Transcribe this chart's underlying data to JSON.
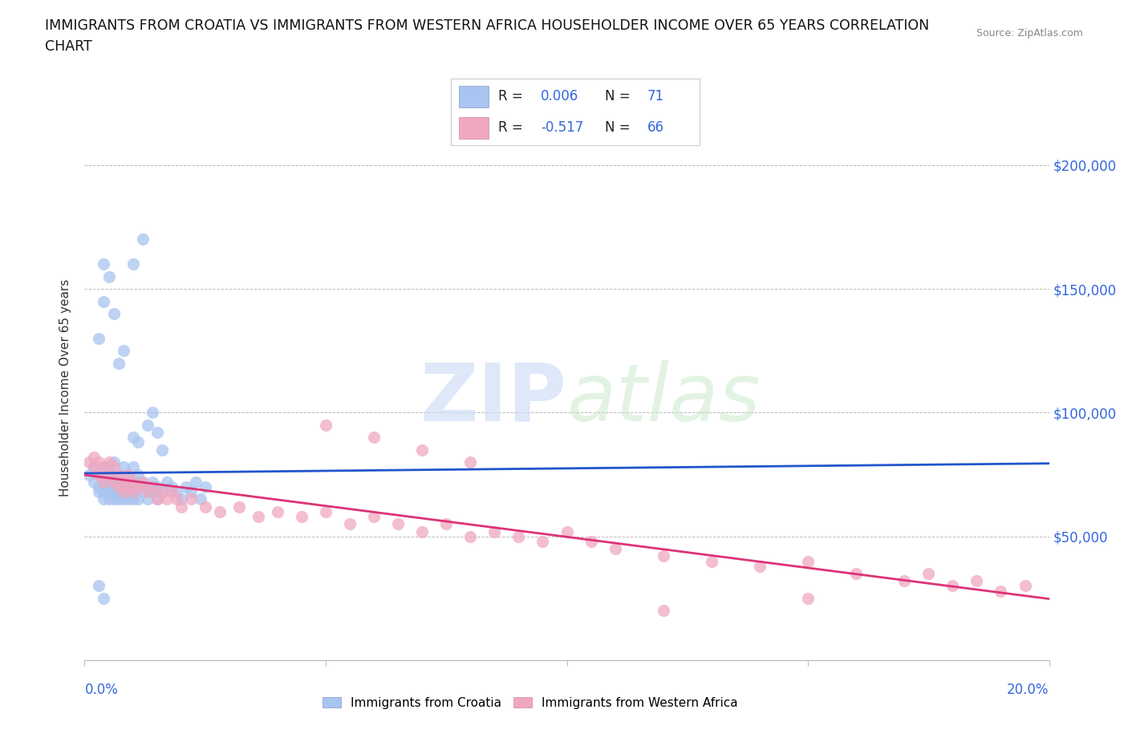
{
  "title_line1": "IMMIGRANTS FROM CROATIA VS IMMIGRANTS FROM WESTERN AFRICA HOUSEHOLDER INCOME OVER 65 YEARS CORRELATION",
  "title_line2": "CHART",
  "source": "Source: ZipAtlas.com",
  "ylabel": "Householder Income Over 65 years",
  "watermark": "ZIPatlas",
  "R_croatia": 0.006,
  "N_croatia": 71,
  "R_wa": -0.517,
  "N_wa": 66,
  "croatia_color": "#a8c4f0",
  "wa_color": "#f0a8c0",
  "croatia_line_color": "#2255cc",
  "wa_line_color": "#dd3377",
  "legend_text_color": "#3366dd",
  "xlim": [
    0.0,
    0.2
  ],
  "ylim": [
    0,
    220000
  ],
  "grid_color": "#bbbbbb",
  "background": "#ffffff",
  "tick_color": "#3366dd",
  "croatia_x": [
    0.001,
    0.002,
    0.002,
    0.003,
    0.003,
    0.003,
    0.004,
    0.004,
    0.004,
    0.004,
    0.005,
    0.005,
    0.005,
    0.005,
    0.005,
    0.005,
    0.006,
    0.006,
    0.006,
    0.006,
    0.006,
    0.006,
    0.007,
    0.007,
    0.007,
    0.007,
    0.007,
    0.008,
    0.008,
    0.008,
    0.008,
    0.009,
    0.009,
    0.009,
    0.009,
    0.009,
    0.01,
    0.01,
    0.01,
    0.01,
    0.01,
    0.011,
    0.011,
    0.011,
    0.012,
    0.012,
    0.012,
    0.013,
    0.013,
    0.014,
    0.014,
    0.015,
    0.015,
    0.016,
    0.017,
    0.018,
    0.019,
    0.02,
    0.021,
    0.022,
    0.023,
    0.024,
    0.025,
    0.013,
    0.01,
    0.011,
    0.014,
    0.015,
    0.016,
    0.01,
    0.012
  ],
  "croatia_y": [
    75000,
    72000,
    78000,
    68000,
    75000,
    70000,
    65000,
    72000,
    78000,
    68000,
    65000,
    72000,
    75000,
    68000,
    78000,
    70000,
    65000,
    72000,
    68000,
    75000,
    80000,
    70000,
    65000,
    72000,
    68000,
    75000,
    70000,
    65000,
    72000,
    68000,
    78000,
    70000,
    72000,
    65000,
    75000,
    68000,
    72000,
    78000,
    65000,
    70000,
    68000,
    72000,
    65000,
    75000,
    70000,
    68000,
    72000,
    65000,
    70000,
    68000,
    72000,
    65000,
    70000,
    68000,
    72000,
    70000,
    68000,
    65000,
    70000,
    68000,
    72000,
    65000,
    70000,
    95000,
    90000,
    88000,
    100000,
    92000,
    85000,
    160000,
    170000
  ],
  "croatia_y_outliers_x": [
    0.003,
    0.004,
    0.004,
    0.005,
    0.006,
    0.007,
    0.008,
    0.003,
    0.004
  ],
  "croatia_y_outliers_y": [
    130000,
    145000,
    160000,
    155000,
    140000,
    120000,
    125000,
    30000,
    25000
  ],
  "wa_x": [
    0.001,
    0.002,
    0.002,
    0.003,
    0.003,
    0.004,
    0.004,
    0.005,
    0.005,
    0.006,
    0.006,
    0.007,
    0.007,
    0.008,
    0.008,
    0.009,
    0.009,
    0.01,
    0.01,
    0.011,
    0.012,
    0.013,
    0.014,
    0.015,
    0.016,
    0.017,
    0.018,
    0.019,
    0.02,
    0.022,
    0.025,
    0.028,
    0.032,
    0.036,
    0.04,
    0.045,
    0.05,
    0.055,
    0.06,
    0.065,
    0.07,
    0.075,
    0.08,
    0.085,
    0.09,
    0.095,
    0.1,
    0.105,
    0.11,
    0.12,
    0.13,
    0.14,
    0.15,
    0.16,
    0.17,
    0.175,
    0.18,
    0.185,
    0.19,
    0.195,
    0.05,
    0.06,
    0.07,
    0.08,
    0.12,
    0.15
  ],
  "wa_y": [
    80000,
    78000,
    82000,
    75000,
    80000,
    78000,
    72000,
    75000,
    80000,
    72000,
    78000,
    70000,
    75000,
    72000,
    68000,
    75000,
    70000,
    72000,
    68000,
    70000,
    72000,
    68000,
    70000,
    65000,
    68000,
    65000,
    68000,
    65000,
    62000,
    65000,
    62000,
    60000,
    62000,
    58000,
    60000,
    58000,
    60000,
    55000,
    58000,
    55000,
    52000,
    55000,
    50000,
    52000,
    50000,
    48000,
    52000,
    48000,
    45000,
    42000,
    40000,
    38000,
    40000,
    35000,
    32000,
    35000,
    30000,
    32000,
    28000,
    30000,
    95000,
    90000,
    85000,
    80000,
    20000,
    25000
  ]
}
